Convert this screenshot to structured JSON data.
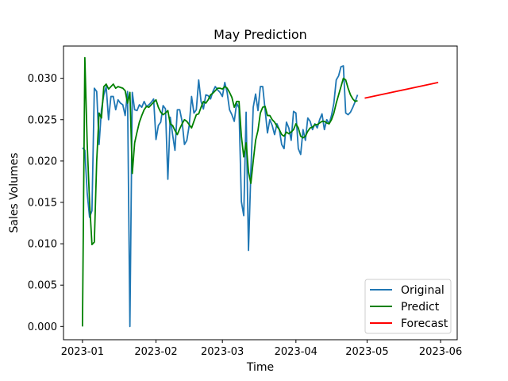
{
  "chart_data": {
    "type": "line",
    "title": "May Prediction",
    "xlabel": "Time",
    "ylabel": "Sales Volumes",
    "xlim": [
      "2022-12-24",
      "2023-06-08"
    ],
    "ylim": [
      -0.0016,
      0.0339
    ],
    "x_ticks": [
      "2023-01-01",
      "2023-02-01",
      "2023-03-01",
      "2023-04-01",
      "2023-05-01",
      "2023-06-01"
    ],
    "x_tick_labels": [
      "2023-01",
      "2023-02",
      "2023-03",
      "2023-04",
      "2023-05",
      "2023-06"
    ],
    "y_ticks": [
      0.0,
      0.005,
      0.01,
      0.015,
      0.02,
      0.025,
      0.03
    ],
    "y_tick_labels": [
      "0.000",
      "0.005",
      "0.010",
      "0.015",
      "0.020",
      "0.025",
      "0.030"
    ],
    "grid": false,
    "legend_position": "lower-right",
    "series": [
      {
        "name": "Original",
        "color": "#1f77b4",
        "points": [
          [
            "2023-01-01",
            0.0216
          ],
          [
            "2023-01-02",
            0.0213
          ],
          [
            "2023-01-03",
            0.0161
          ],
          [
            "2023-01-04",
            0.0132
          ],
          [
            "2023-01-05",
            0.014
          ],
          [
            "2023-01-06",
            0.0288
          ],
          [
            "2023-01-07",
            0.0284
          ],
          [
            "2023-01-08",
            0.022
          ],
          [
            "2023-01-09",
            0.0262
          ],
          [
            "2023-01-10",
            0.028
          ],
          [
            "2023-01-11",
            0.029
          ],
          [
            "2023-01-12",
            0.025
          ],
          [
            "2023-01-13",
            0.0278
          ],
          [
            "2023-01-14",
            0.0278
          ],
          [
            "2023-01-15",
            0.0262
          ],
          [
            "2023-01-16",
            0.0274
          ],
          [
            "2023-01-17",
            0.027
          ],
          [
            "2023-01-18",
            0.0268
          ],
          [
            "2023-01-19",
            0.0255
          ],
          [
            "2023-01-20",
            0.0284
          ],
          [
            "2023-01-21",
            0.0
          ],
          [
            "2023-01-22",
            0.0283
          ],
          [
            "2023-01-23",
            0.0262
          ],
          [
            "2023-01-24",
            0.0261
          ],
          [
            "2023-01-25",
            0.0268
          ],
          [
            "2023-01-26",
            0.0265
          ],
          [
            "2023-01-27",
            0.0272
          ],
          [
            "2023-01-28",
            0.0266
          ],
          [
            "2023-01-29",
            0.0268
          ],
          [
            "2023-01-30",
            0.0271
          ],
          [
            "2023-01-31",
            0.0275
          ],
          [
            "2023-02-01",
            0.0226
          ],
          [
            "2023-02-02",
            0.0243
          ],
          [
            "2023-02-03",
            0.0247
          ],
          [
            "2023-02-04",
            0.0267
          ],
          [
            "2023-02-05",
            0.0263
          ],
          [
            "2023-02-06",
            0.0178
          ],
          [
            "2023-02-07",
            0.0253
          ],
          [
            "2023-02-08",
            0.0232
          ],
          [
            "2023-02-09",
            0.0213
          ],
          [
            "2023-02-10",
            0.0262
          ],
          [
            "2023-02-11",
            0.0262
          ],
          [
            "2023-02-12",
            0.0248
          ],
          [
            "2023-02-13",
            0.022
          ],
          [
            "2023-02-14",
            0.0225
          ],
          [
            "2023-02-15",
            0.0243
          ],
          [
            "2023-02-16",
            0.0278
          ],
          [
            "2023-02-17",
            0.0258
          ],
          [
            "2023-02-18",
            0.0262
          ],
          [
            "2023-02-19",
            0.0298
          ],
          [
            "2023-02-20",
            0.0272
          ],
          [
            "2023-02-21",
            0.0263
          ],
          [
            "2023-02-22",
            0.028
          ],
          [
            "2023-02-23",
            0.0279
          ],
          [
            "2023-02-24",
            0.0275
          ],
          [
            "2023-02-25",
            0.0284
          ],
          [
            "2023-02-26",
            0.029
          ],
          [
            "2023-02-27",
            0.0286
          ],
          [
            "2023-02-28",
            0.0283
          ],
          [
            "2023-03-01",
            0.0278
          ],
          [
            "2023-03-02",
            0.0295
          ],
          [
            "2023-03-03",
            0.0283
          ],
          [
            "2023-03-04",
            0.0262
          ],
          [
            "2023-03-05",
            0.0256
          ],
          [
            "2023-03-06",
            0.0248
          ],
          [
            "2023-03-07",
            0.027
          ],
          [
            "2023-03-08",
            0.0264
          ],
          [
            "2023-03-09",
            0.0151
          ],
          [
            "2023-03-10",
            0.0134
          ],
          [
            "2023-03-11",
            0.0259
          ],
          [
            "2023-03-12",
            0.0092
          ],
          [
            "2023-03-13",
            0.0187
          ],
          [
            "2023-03-14",
            0.0265
          ],
          [
            "2023-03-15",
            0.0281
          ],
          [
            "2023-03-16",
            0.0261
          ],
          [
            "2023-03-17",
            0.029
          ],
          [
            "2023-03-18",
            0.029
          ],
          [
            "2023-03-19",
            0.0262
          ],
          [
            "2023-03-20",
            0.0234
          ],
          [
            "2023-03-21",
            0.025
          ],
          [
            "2023-03-22",
            0.0243
          ],
          [
            "2023-03-23",
            0.0232
          ],
          [
            "2023-03-24",
            0.0245
          ],
          [
            "2023-03-25",
            0.0238
          ],
          [
            "2023-03-26",
            0.022
          ],
          [
            "2023-03-27",
            0.0215
          ],
          [
            "2023-03-28",
            0.0247
          ],
          [
            "2023-03-29",
            0.024
          ],
          [
            "2023-03-30",
            0.0225
          ],
          [
            "2023-03-31",
            0.026
          ],
          [
            "2023-04-01",
            0.0258
          ],
          [
            "2023-04-02",
            0.0215
          ],
          [
            "2023-04-03",
            0.0208
          ],
          [
            "2023-04-04",
            0.0238
          ],
          [
            "2023-04-05",
            0.0225
          ],
          [
            "2023-04-06",
            0.0252
          ],
          [
            "2023-04-07",
            0.0248
          ],
          [
            "2023-04-08",
            0.0238
          ],
          [
            "2023-04-09",
            0.0245
          ],
          [
            "2023-04-10",
            0.024
          ],
          [
            "2023-04-11",
            0.025
          ],
          [
            "2023-04-12",
            0.0257
          ],
          [
            "2023-04-13",
            0.0238
          ],
          [
            "2023-04-14",
            0.025
          ],
          [
            "2023-04-15",
            0.0245
          ],
          [
            "2023-04-16",
            0.0255
          ],
          [
            "2023-04-17",
            0.027
          ],
          [
            "2023-04-18",
            0.0298
          ],
          [
            "2023-04-19",
            0.0303
          ],
          [
            "2023-04-20",
            0.0314
          ],
          [
            "2023-04-21",
            0.0315
          ],
          [
            "2023-04-22",
            0.0258
          ],
          [
            "2023-04-23",
            0.0256
          ],
          [
            "2023-04-24",
            0.0259
          ],
          [
            "2023-04-25",
            0.0265
          ],
          [
            "2023-04-26",
            0.0272
          ],
          [
            "2023-04-27",
            0.028
          ]
        ]
      },
      {
        "name": "Predict",
        "color": "#008000",
        "points": [
          [
            "2023-01-01",
            0.0
          ],
          [
            "2023-01-02",
            0.0325
          ],
          [
            "2023-01-03",
            0.022
          ],
          [
            "2023-01-04",
            0.015
          ],
          [
            "2023-01-05",
            0.0099
          ],
          [
            "2023-01-06",
            0.0102
          ],
          [
            "2023-01-07",
            0.02
          ],
          [
            "2023-01-08",
            0.0258
          ],
          [
            "2023-01-09",
            0.0252
          ],
          [
            "2023-01-10",
            0.029
          ],
          [
            "2023-01-11",
            0.0293
          ],
          [
            "2023-01-12",
            0.0287
          ],
          [
            "2023-01-13",
            0.029
          ],
          [
            "2023-01-14",
            0.0293
          ],
          [
            "2023-01-15",
            0.0288
          ],
          [
            "2023-01-16",
            0.029
          ],
          [
            "2023-01-17",
            0.0289
          ],
          [
            "2023-01-18",
            0.0288
          ],
          [
            "2023-01-19",
            0.0285
          ],
          [
            "2023-01-20",
            0.027
          ],
          [
            "2023-01-21",
            0.0283
          ],
          [
            "2023-01-22",
            0.0185
          ],
          [
            "2023-01-23",
            0.0222
          ],
          [
            "2023-01-24",
            0.0235
          ],
          [
            "2023-01-25",
            0.0247
          ],
          [
            "2023-01-26",
            0.0255
          ],
          [
            "2023-01-27",
            0.0262
          ],
          [
            "2023-01-28",
            0.0266
          ],
          [
            "2023-01-29",
            0.0265
          ],
          [
            "2023-01-30",
            0.0268
          ],
          [
            "2023-01-31",
            0.0271
          ],
          [
            "2023-02-01",
            0.0274
          ],
          [
            "2023-02-02",
            0.0265
          ],
          [
            "2023-02-03",
            0.0259
          ],
          [
            "2023-02-04",
            0.0256
          ],
          [
            "2023-02-05",
            0.0258
          ],
          [
            "2023-02-06",
            0.0261
          ],
          [
            "2023-02-07",
            0.0245
          ],
          [
            "2023-02-08",
            0.0243
          ],
          [
            "2023-02-09",
            0.0237
          ],
          [
            "2023-02-10",
            0.0232
          ],
          [
            "2023-02-11",
            0.0239
          ],
          [
            "2023-02-12",
            0.0245
          ],
          [
            "2023-02-13",
            0.025
          ],
          [
            "2023-02-14",
            0.0248
          ],
          [
            "2023-02-15",
            0.0244
          ],
          [
            "2023-02-16",
            0.024
          ],
          [
            "2023-02-17",
            0.0248
          ],
          [
            "2023-02-18",
            0.0256
          ],
          [
            "2023-02-19",
            0.0257
          ],
          [
            "2023-02-20",
            0.0265
          ],
          [
            "2023-02-21",
            0.0272
          ],
          [
            "2023-02-22",
            0.027
          ],
          [
            "2023-02-23",
            0.0274
          ],
          [
            "2023-02-24",
            0.028
          ],
          [
            "2023-02-25",
            0.0282
          ],
          [
            "2023-02-26",
            0.0285
          ],
          [
            "2023-02-27",
            0.0288
          ],
          [
            "2023-02-28",
            0.0288
          ],
          [
            "2023-03-01",
            0.0287
          ],
          [
            "2023-03-02",
            0.029
          ],
          [
            "2023-03-03",
            0.0288
          ],
          [
            "2023-03-04",
            0.0283
          ],
          [
            "2023-03-05",
            0.0277
          ],
          [
            "2023-03-06",
            0.0265
          ],
          [
            "2023-03-07",
            0.0272
          ],
          [
            "2023-03-08",
            0.0272
          ],
          [
            "2023-03-09",
            0.023
          ],
          [
            "2023-03-10",
            0.0205
          ],
          [
            "2023-03-11",
            0.0222
          ],
          [
            "2023-03-12",
            0.0187
          ],
          [
            "2023-03-13",
            0.0173
          ],
          [
            "2023-03-14",
            0.02
          ],
          [
            "2023-03-15",
            0.0225
          ],
          [
            "2023-03-16",
            0.0237
          ],
          [
            "2023-03-17",
            0.0258
          ],
          [
            "2023-03-18",
            0.0265
          ],
          [
            "2023-03-19",
            0.0266
          ],
          [
            "2023-03-20",
            0.0255
          ],
          [
            "2023-03-21",
            0.0255
          ],
          [
            "2023-03-22",
            0.025
          ],
          [
            "2023-03-23",
            0.0247
          ],
          [
            "2023-03-24",
            0.0242
          ],
          [
            "2023-03-25",
            0.0238
          ],
          [
            "2023-03-26",
            0.0232
          ],
          [
            "2023-03-27",
            0.023
          ],
          [
            "2023-03-28",
            0.0235
          ],
          [
            "2023-03-29",
            0.0233
          ],
          [
            "2023-03-30",
            0.0235
          ],
          [
            "2023-03-31",
            0.0238
          ],
          [
            "2023-04-01",
            0.0245
          ],
          [
            "2023-04-02",
            0.024
          ],
          [
            "2023-04-03",
            0.023
          ],
          [
            "2023-04-04",
            0.0228
          ],
          [
            "2023-04-05",
            0.023
          ],
          [
            "2023-04-06",
            0.0236
          ],
          [
            "2023-04-07",
            0.024
          ],
          [
            "2023-04-08",
            0.0241
          ],
          [
            "2023-04-09",
            0.0244
          ],
          [
            "2023-04-10",
            0.0244
          ],
          [
            "2023-04-11",
            0.0246
          ],
          [
            "2023-04-12",
            0.0248
          ],
          [
            "2023-04-13",
            0.0248
          ],
          [
            "2023-04-14",
            0.0246
          ],
          [
            "2023-04-15",
            0.0245
          ],
          [
            "2023-04-16",
            0.025
          ],
          [
            "2023-04-17",
            0.0258
          ],
          [
            "2023-04-18",
            0.027
          ],
          [
            "2023-04-19",
            0.028
          ],
          [
            "2023-04-20",
            0.029
          ],
          [
            "2023-04-21",
            0.03
          ],
          [
            "2023-04-22",
            0.0298
          ],
          [
            "2023-04-23",
            0.0288
          ],
          [
            "2023-04-24",
            0.028
          ],
          [
            "2023-04-25",
            0.0275
          ],
          [
            "2023-04-26",
            0.0272
          ],
          [
            "2023-04-27",
            0.0273
          ]
        ]
      },
      {
        "name": "Forecast",
        "color": "#ff0000",
        "points": [
          [
            "2023-04-30",
            0.0276
          ],
          [
            "2023-05-31",
            0.0295
          ]
        ]
      }
    ]
  }
}
